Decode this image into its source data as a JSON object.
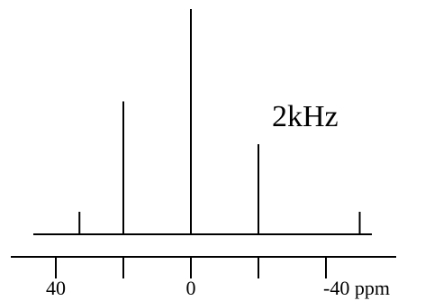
{
  "chart_data": {
    "type": "bar",
    "x": [
      33,
      20,
      0,
      -20,
      -50
    ],
    "series": [
      {
        "values": [
          0.1,
          0.59,
          1.0,
          0.4,
          0.1
        ]
      }
    ],
    "xlim": [
      60,
      -60
    ],
    "ylim": [
      0,
      1
    ],
    "x_reversed": true,
    "axis_ticks": [
      40,
      20,
      0,
      -20,
      -40
    ],
    "tick_labels": [
      {
        "value": 40,
        "text": "40"
      },
      {
        "value": 0,
        "text": "0"
      },
      {
        "value": -40,
        "text": "-40 ppm"
      }
    ],
    "annotation": "2kHz",
    "grid": false,
    "legend": "none",
    "colors": {
      "line": "#000000",
      "background": "#ffffff"
    }
  }
}
